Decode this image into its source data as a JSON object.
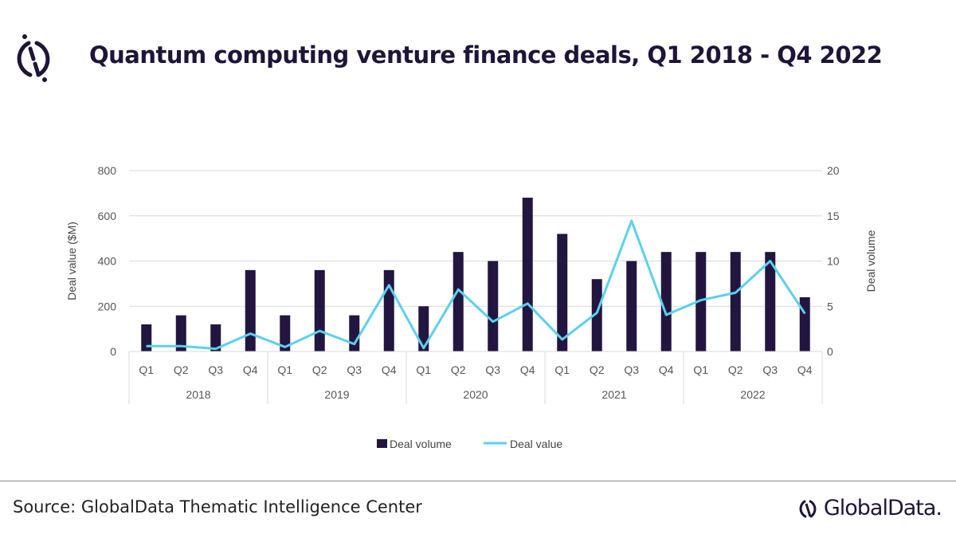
{
  "header": {
    "title": "Quantum computing venture finance deals, Q1 2018 - Q4 2022"
  },
  "footer": {
    "source": "Source: GlobalData Thematic Intelligence Center",
    "brand": "GlobalData."
  },
  "chart_data": {
    "type": "bar+line",
    "title": "",
    "categories": [
      "Q1",
      "Q2",
      "Q3",
      "Q4",
      "Q1",
      "Q2",
      "Q3",
      "Q4",
      "Q1",
      "Q2",
      "Q3",
      "Q4",
      "Q1",
      "Q2",
      "Q3",
      "Q4",
      "Q1",
      "Q2",
      "Q3",
      "Q4"
    ],
    "groups": [
      "2018",
      "2019",
      "2020",
      "2021",
      "2022"
    ],
    "series": [
      {
        "name": "Deal volume",
        "type": "bar",
        "axis": "right",
        "color": "#221640",
        "values": [
          3,
          4,
          3,
          9,
          4,
          9,
          4,
          9,
          5,
          11,
          10,
          17,
          13,
          8,
          10,
          11,
          11,
          11,
          11,
          6
        ]
      },
      {
        "name": "Deal value",
        "type": "line",
        "axis": "left",
        "color": "#5bd0ee",
        "values": [
          24,
          24,
          12,
          79,
          20,
          91,
          33,
          293,
          15,
          274,
          132,
          212,
          53,
          171,
          578,
          162,
          227,
          260,
          400,
          168
        ]
      }
    ],
    "ylabel": "Deal value ($M)",
    "ylabel_right": "Deal volume",
    "ylim": [
      0,
      800
    ],
    "yticks": [
      "0",
      "200",
      "400",
      "600",
      "800"
    ],
    "ylim_right": [
      0,
      20
    ],
    "yticks_right": [
      "0",
      "5",
      "10",
      "15",
      "20"
    ],
    "grid": true,
    "legend": "bottom"
  }
}
